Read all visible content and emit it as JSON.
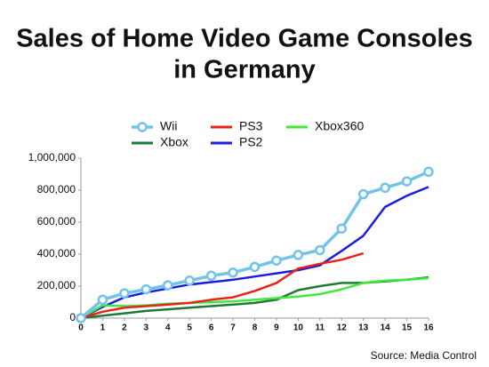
{
  "chart_data": {
    "type": "line",
    "title": "Sales of Home Video Game Consoles",
    "subtitle": "in Germany",
    "source": "Source: Media Control",
    "x": [
      0,
      1,
      2,
      3,
      4,
      5,
      6,
      7,
      8,
      9,
      10,
      11,
      12,
      13,
      14,
      15,
      16
    ],
    "xlim": [
      0,
      16
    ],
    "xticks": [
      0,
      1,
      2,
      3,
      4,
      5,
      6,
      7,
      8,
      9,
      10,
      11,
      12,
      13,
      14,
      15,
      16
    ],
    "ylim": [
      0,
      1000000
    ],
    "yticks": [
      0,
      {
        "value": 200000,
        "label": "200,000"
      },
      {
        "value": 400000,
        "label": "400,000"
      },
      {
        "value": 600000,
        "label": "600,000"
      },
      {
        "value": 800000,
        "label": "800,000"
      },
      {
        "value": 1000000,
        "label": "1,000,000"
      }
    ],
    "grid": false,
    "series": [
      {
        "name": "Wii",
        "color": "#72c3ea",
        "marker": "circle",
        "values": [
          0,
          115000,
          155000,
          180000,
          205000,
          235000,
          265000,
          285000,
          320000,
          360000,
          395000,
          425000,
          560000,
          775000,
          815000,
          855000,
          915000
        ]
      },
      {
        "name": "PS3",
        "color": "#e8231e",
        "values": [
          0,
          40000,
          65000,
          75000,
          85000,
          95000,
          115000,
          130000,
          170000,
          220000,
          310000,
          340000,
          365000,
          405000,
          null,
          null,
          null
        ]
      },
      {
        "name": "Xbox360",
        "color": "#3fe83a",
        "values": [
          0,
          80000,
          75000,
          80000,
          90000,
          95000,
          100000,
          105000,
          115000,
          125000,
          135000,
          150000,
          180000,
          220000,
          235000,
          240000,
          250000
        ]
      },
      {
        "name": "Xbox",
        "color": "#1d7a36",
        "values": [
          0,
          15000,
          30000,
          45000,
          55000,
          65000,
          75000,
          85000,
          95000,
          115000,
          175000,
          200000,
          220000,
          220000,
          230000,
          240000,
          255000
        ]
      },
      {
        "name": "PS2",
        "color": "#1b1ee0",
        "values": [
          0,
          70000,
          130000,
          160000,
          185000,
          210000,
          225000,
          240000,
          260000,
          280000,
          300000,
          330000,
          420000,
          515000,
          695000,
          765000,
          820000
        ]
      }
    ]
  }
}
